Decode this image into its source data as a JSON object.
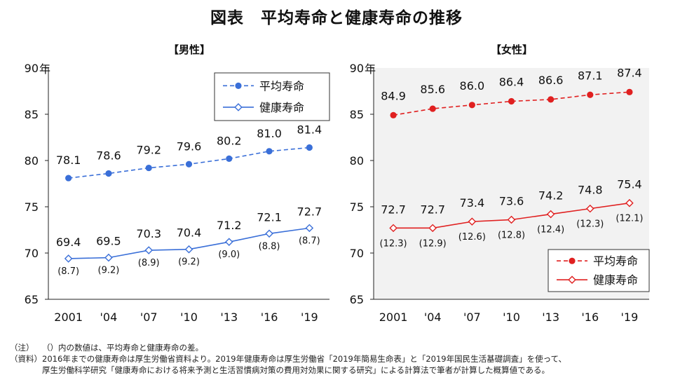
{
  "title": "図表　平均寿命と健康寿命の推移",
  "colors": {
    "male": "#3a6fd8",
    "male_avg": "#3a6fd8",
    "female": "#e02020",
    "plot_bg_female": "#f2f2f2",
    "text": "#111111"
  },
  "chart_data": [
    {
      "type": "line",
      "title": "【男性】",
      "unit": "年",
      "categories": [
        "2001",
        "'04",
        "'07",
        "'10",
        "'13",
        "'16",
        "'19"
      ],
      "ylim": [
        65,
        90
      ],
      "yticks": [
        "90",
        "85",
        "80",
        "75",
        "70",
        "65"
      ],
      "series": [
        {
          "name": "平均寿命",
          "style": "dashed",
          "marker": "filled-circle",
          "values": [
            78.1,
            78.6,
            79.2,
            79.6,
            80.2,
            81.0,
            81.4
          ],
          "labels": [
            "78.1",
            "78.6",
            "79.2",
            "79.6",
            "80.2",
            "81.0",
            "81.4"
          ]
        },
        {
          "name": "健康寿命",
          "style": "solid",
          "marker": "open-diamond",
          "values": [
            69.4,
            69.5,
            70.3,
            70.4,
            71.2,
            72.1,
            72.7
          ],
          "labels": [
            "69.4",
            "69.5",
            "70.3",
            "70.4",
            "71.2",
            "72.1",
            "72.7"
          ]
        }
      ],
      "gap_labels": [
        "(8.7)",
        "(9.2)",
        "(8.9)",
        "(9.2)",
        "(9.0)",
        "(8.8)",
        "(8.7)"
      ],
      "legend": "top-right"
    },
    {
      "type": "line",
      "title": "【女性】",
      "unit": "年",
      "categories": [
        "2001",
        "'04",
        "'07",
        "'10",
        "'13",
        "'16",
        "'19"
      ],
      "ylim": [
        65,
        90
      ],
      "yticks": [
        "90",
        "85",
        "80",
        "75",
        "70",
        "65"
      ],
      "series": [
        {
          "name": "平均寿命",
          "style": "dashed",
          "marker": "filled-circle",
          "values": [
            84.9,
            85.6,
            86.0,
            86.4,
            86.6,
            87.1,
            87.4
          ],
          "labels": [
            "84.9",
            "85.6",
            "86.0",
            "86.4",
            "86.6",
            "87.1",
            "87.4"
          ]
        },
        {
          "name": "健康寿命",
          "style": "solid",
          "marker": "open-diamond",
          "values": [
            72.7,
            72.7,
            73.4,
            73.6,
            74.2,
            74.8,
            75.4
          ],
          "labels": [
            "72.7",
            "72.7",
            "73.4",
            "73.6",
            "74.2",
            "74.8",
            "75.4"
          ]
        }
      ],
      "gap_labels": [
        "(12.3)",
        "(12.9)",
        "(12.6)",
        "(12.8)",
        "(12.4)",
        "(12.3)",
        "(12.1)"
      ],
      "legend": "bottom-right"
    }
  ],
  "notes": {
    "note_label": "（注）",
    "note_text": "（）内の数値は、平均寿命と健康寿命の差。",
    "source_label": "（資料）",
    "source_line1": "2016年までの健康寿命は厚生労働省資料より。2019年健康寿命は厚生労働省「2019年簡易生命表」と「2019年国民生活基礎調査」を使って、",
    "source_line2": "厚生労働科学研究「健康寿命における将来予測と生活習慣病対策の費用対効果に関する研究」による計算法で筆者が計算した概算値である。"
  }
}
